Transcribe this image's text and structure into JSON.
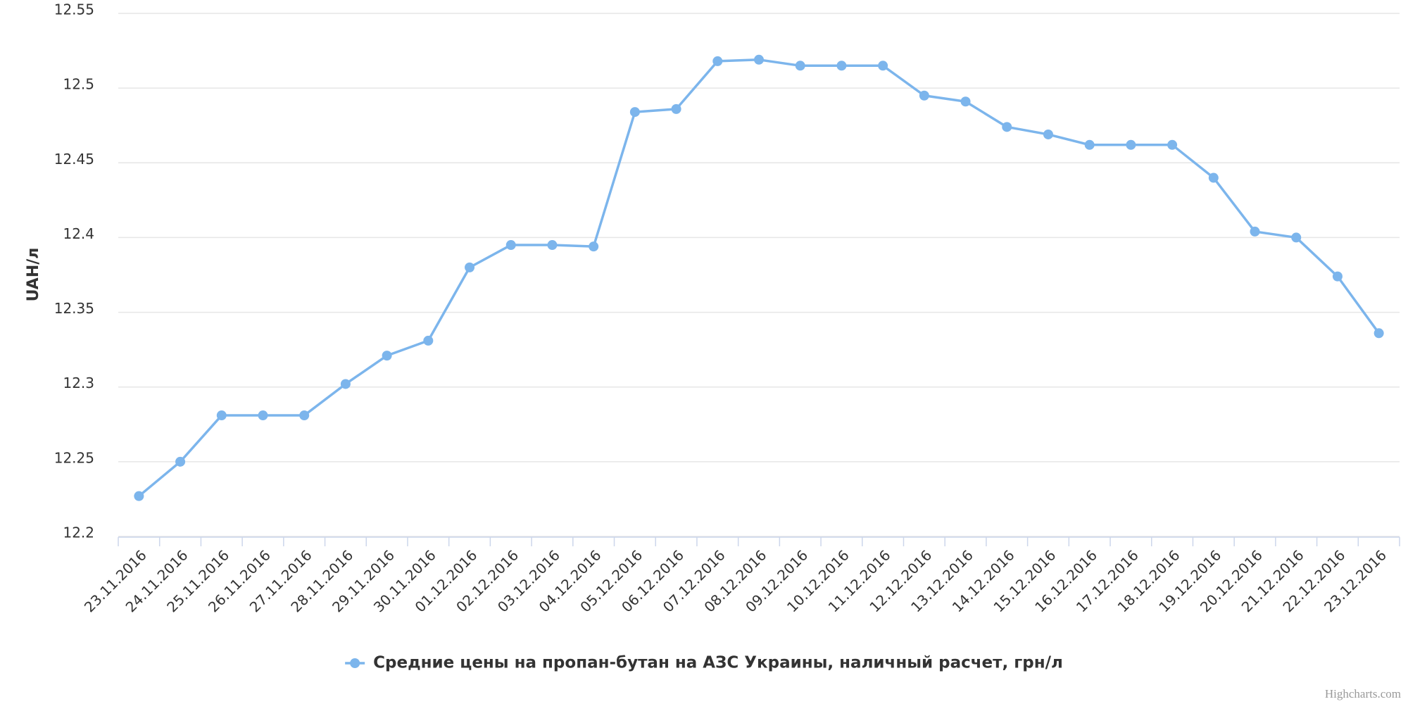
{
  "chart_data": {
    "type": "line",
    "y_label": "UAH/л",
    "categories": [
      "23.11.2016",
      "24.11.2016",
      "25.11.2016",
      "26.11.2016",
      "27.11.2016",
      "28.11.2016",
      "29.11.2016",
      "30.11.2016",
      "01.12.2016",
      "02.12.2016",
      "03.12.2016",
      "04.12.2016",
      "05.12.2016",
      "06.12.2016",
      "07.12.2016",
      "08.12.2016",
      "09.12.2016",
      "10.12.2016",
      "11.12.2016",
      "12.12.2016",
      "13.12.2016",
      "14.12.2016",
      "15.12.2016",
      "16.12.2016",
      "17.12.2016",
      "18.12.2016",
      "19.12.2016",
      "20.12.2016",
      "21.12.2016",
      "22.12.2016",
      "23.12.2016"
    ],
    "series": [
      {
        "name": "Средние цены на пропан-бутан на АЗС Украины, наличный расчет, грн/л",
        "color": "#7cb5ec",
        "values": [
          12.227,
          12.25,
          12.281,
          12.281,
          12.281,
          12.302,
          12.321,
          12.331,
          12.38,
          12.395,
          12.395,
          12.394,
          12.484,
          12.486,
          12.518,
          12.519,
          12.515,
          12.515,
          12.515,
          12.495,
          12.491,
          12.474,
          12.469,
          12.462,
          12.462,
          12.462,
          12.44,
          12.404,
          12.4,
          12.374,
          12.336
        ]
      }
    ],
    "ylim": [
      12.2,
      12.55
    ],
    "yticks": [
      12.2,
      12.25,
      12.3,
      12.35,
      12.4,
      12.45,
      12.5,
      12.55
    ],
    "grid": true,
    "legend": "bottom",
    "credits": "Highcharts.com"
  }
}
